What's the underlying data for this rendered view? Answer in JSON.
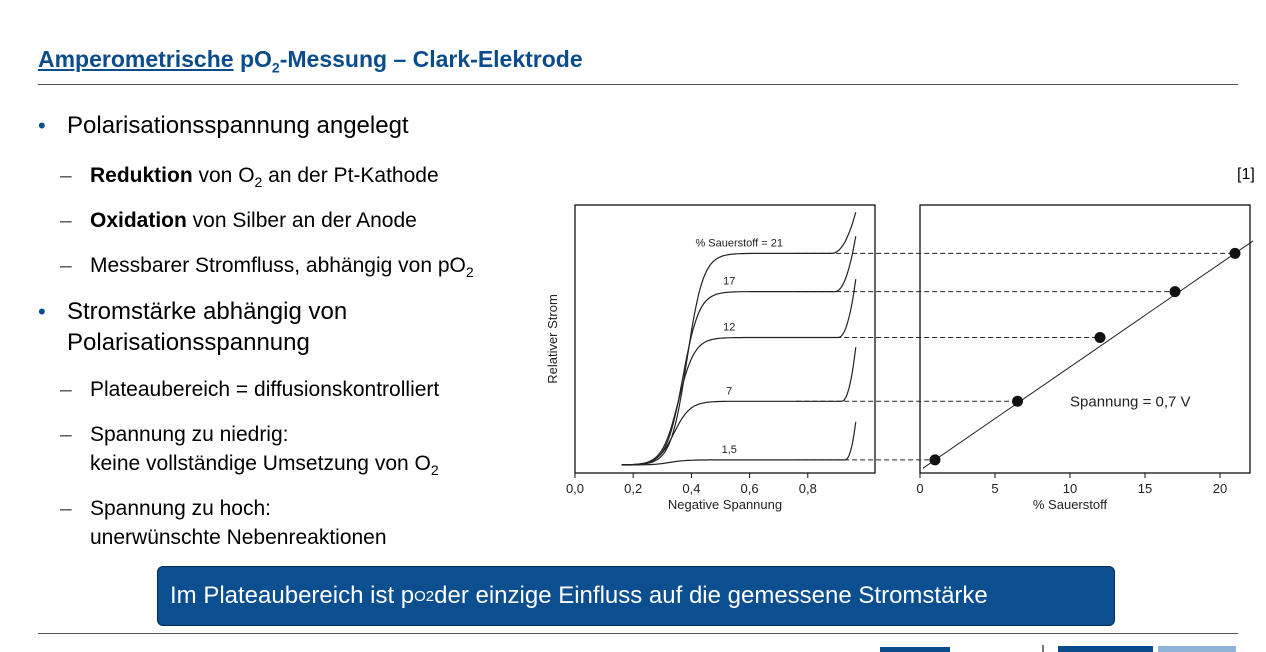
{
  "slide": {
    "title_underlined": "Amperometrische",
    "title_rest_a": " pO",
    "title_sub": "2",
    "title_rest_b": "-Messung – Clark-Elektrode",
    "reference": "[1]",
    "bullets": [
      {
        "text": "Polarisationsspannung angelegt"
      },
      {
        "text_a": "Stromstärke abhängig von",
        "text_b": "Polarisationsspannung"
      }
    ],
    "subbullets": {
      "reduktion_bold": "Reduktion",
      "reduktion_a": " von O",
      "reduktion_sub": "2",
      "reduktion_b": " an der Pt-Kathode",
      "oxidation_bold": "Oxidation",
      "oxidation_rest": " von Silber an der Anode",
      "messbar_a": "Messbarer Stromfluss, abhängig von pO",
      "messbar_sub": "2",
      "plateau": "Plateaubereich = diffusionskontrolliert",
      "niedrig_a": "Spannung zu niedrig:",
      "niedrig_b": "keine vollständige Umsetzung von O",
      "niedrig_sub": "2",
      "hoch_a": "Spannung zu hoch:",
      "hoch_b": "unerwünschte Nebenreaktionen"
    },
    "callout_a": "Im Plateaubereich ist p",
    "callout_sub": "O2",
    "callout_b": " der einzige Einfluss auf die gemessene Stromstärke"
  },
  "chart_data": [
    {
      "type": "line",
      "xlabel": "Negative Spannung",
      "ylabel": "Relativer Strom",
      "xlim": [
        0,
        1.0
      ],
      "xticks": [
        "0,0",
        "0,2",
        "0,4",
        "0,6",
        "0,8"
      ],
      "xtick_values": [
        0,
        0.2,
        0.4,
        0.6,
        0.8
      ],
      "curve_label_prefix": "% Sauerstoff = ",
      "series": [
        {
          "name": "21",
          "plateau": 0.83
        },
        {
          "name": "17",
          "plateau": 0.68
        },
        {
          "name": "12",
          "plateau": 0.5
        },
        {
          "name": "7",
          "plateau": 0.25
        },
        {
          "name": "1,5",
          "plateau": 0.02
        }
      ]
    },
    {
      "type": "scatter",
      "xlabel": "% Sauerstoff",
      "xlim": [
        0,
        22
      ],
      "xticks": [
        "0",
        "5",
        "10",
        "15",
        "20"
      ],
      "xtick_values": [
        0,
        5,
        10,
        15,
        20
      ],
      "annotation": "Spannung = 0,7 V",
      "points": [
        {
          "x": 1,
          "y": 0.02
        },
        {
          "x": 6.5,
          "y": 0.25
        },
        {
          "x": 12,
          "y": 0.5
        },
        {
          "x": 17,
          "y": 0.68
        },
        {
          "x": 21,
          "y": 0.83
        }
      ]
    }
  ]
}
